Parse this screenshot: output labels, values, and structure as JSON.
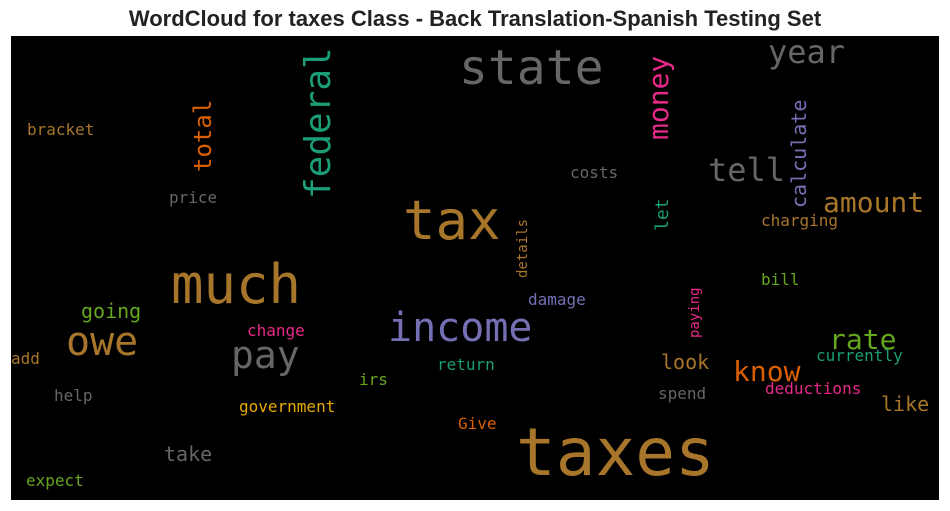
{
  "title": "WordCloud for taxes Class - Back Translation-Spanish Testing Set",
  "chart_data": {
    "type": "wordcloud",
    "title": "WordCloud for taxes Class - Back Translation-Spanish Testing Set",
    "words": [
      {
        "text": "taxes",
        "color": "#a8762a"
      },
      {
        "text": "much",
        "color": "#a8762a"
      },
      {
        "text": "tax",
        "color": "#a8762a"
      },
      {
        "text": "state",
        "color": "#666666"
      },
      {
        "text": "income",
        "color": "#7570b3"
      },
      {
        "text": "federal",
        "color": "#1b9e77"
      },
      {
        "text": "owe",
        "color": "#a8762a"
      },
      {
        "text": "pay",
        "color": "#666666"
      },
      {
        "text": "year",
        "color": "#666666"
      },
      {
        "text": "money",
        "color": "#e7298a"
      },
      {
        "text": "tell",
        "color": "#666666"
      },
      {
        "text": "amount",
        "color": "#a8762a"
      },
      {
        "text": "rate",
        "color": "#66a61e"
      },
      {
        "text": "know",
        "color": "#d95f02"
      },
      {
        "text": "total",
        "color": "#d95f02"
      },
      {
        "text": "calculate",
        "color": "#7570b3"
      },
      {
        "text": "look",
        "color": "#a8762a"
      },
      {
        "text": "like",
        "color": "#a8762a"
      },
      {
        "text": "take",
        "color": "#666666"
      },
      {
        "text": "going",
        "color": "#66a61e"
      },
      {
        "text": "let",
        "color": "#1b9e77"
      },
      {
        "text": "bracket",
        "color": "#a8762a"
      },
      {
        "text": "costs",
        "color": "#666666"
      },
      {
        "text": "price",
        "color": "#666666"
      },
      {
        "text": "charging",
        "color": "#a8762a"
      },
      {
        "text": "details",
        "color": "#a8762a"
      },
      {
        "text": "bill",
        "color": "#66a61e"
      },
      {
        "text": "damage",
        "color": "#7570b3"
      },
      {
        "text": "paying",
        "color": "#e7298a"
      },
      {
        "text": "change",
        "color": "#e7298a"
      },
      {
        "text": "currently",
        "color": "#1b9e77"
      },
      {
        "text": "add",
        "color": "#a8762a"
      },
      {
        "text": "return",
        "color": "#1b9e77"
      },
      {
        "text": "irs",
        "color": "#66a61e"
      },
      {
        "text": "deductions",
        "color": "#e7298a"
      },
      {
        "text": "help",
        "color": "#666666"
      },
      {
        "text": "spend",
        "color": "#666666"
      },
      {
        "text": "government",
        "color": "#e6ab02"
      },
      {
        "text": "Give",
        "color": "#d95f02"
      },
      {
        "text": "expect",
        "color": "#66a61e"
      }
    ]
  }
}
